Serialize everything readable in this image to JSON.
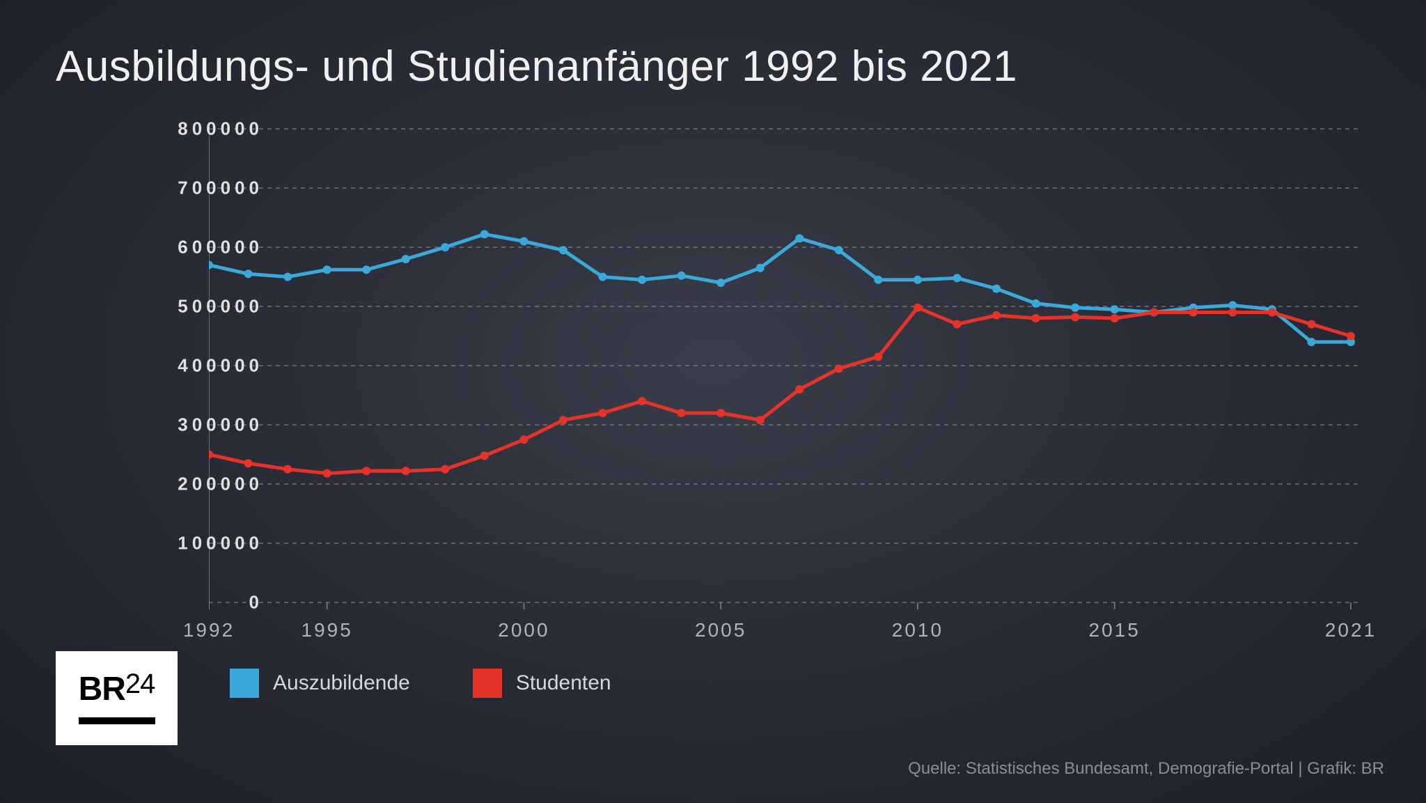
{
  "title": "Ausbildungs- und Studienanfänger 1992 bis 2021",
  "chart": {
    "type": "line",
    "background_gradient": [
      "#3a3e4a",
      "#2a2d37",
      "#1e2029"
    ],
    "grid_color": "#9a9da6",
    "grid_dash": "6 6",
    "axis_color": "#9a9da6",
    "ylim": [
      0,
      800000
    ],
    "ytick_step": 100000,
    "y_ticks": [
      "0",
      "100000",
      "200000",
      "300000",
      "400000",
      "500000",
      "600000",
      "700000",
      "800000"
    ],
    "xlim": [
      1992,
      2021
    ],
    "x_ticks": [
      1992,
      1995,
      2000,
      2005,
      2010,
      2015,
      2021
    ],
    "x_tick_labels": [
      "1992",
      "1995",
      "2000",
      "2005",
      "2010",
      "2015",
      "2021"
    ],
    "line_width": 5,
    "marker_size": 6,
    "tick_label_fontsize": 26,
    "series": [
      {
        "name": "Auszubildende",
        "color": "#3aa8d8",
        "years": [
          1992,
          1993,
          1994,
          1995,
          1996,
          1997,
          1998,
          1999,
          2000,
          2001,
          2002,
          2003,
          2004,
          2005,
          2006,
          2007,
          2008,
          2009,
          2010,
          2011,
          2012,
          2013,
          2014,
          2015,
          2016,
          2017,
          2018,
          2019,
          2020,
          2021
        ],
        "values": [
          570000,
          555000,
          550000,
          562000,
          562000,
          580000,
          600000,
          622000,
          610000,
          595000,
          550000,
          545000,
          552000,
          540000,
          565000,
          615000,
          595000,
          545000,
          545000,
          548000,
          530000,
          505000,
          498000,
          495000,
          490000,
          498000,
          502000,
          495000,
          440000,
          440000
        ]
      },
      {
        "name": "Studenten",
        "color": "#e6332a",
        "years": [
          1992,
          1993,
          1994,
          1995,
          1996,
          1997,
          1998,
          1999,
          2000,
          2001,
          2002,
          2003,
          2004,
          2005,
          2006,
          2007,
          2008,
          2009,
          2010,
          2011,
          2012,
          2013,
          2014,
          2015,
          2016,
          2017,
          2018,
          2019,
          2020,
          2021
        ],
        "values": [
          250000,
          235000,
          225000,
          218000,
          222000,
          222000,
          225000,
          248000,
          275000,
          308000,
          320000,
          340000,
          320000,
          320000,
          308000,
          360000,
          395000,
          415000,
          498000,
          470000,
          485000,
          480000,
          482000,
          480000,
          490000,
          490000,
          490000,
          490000,
          470000,
          450000
        ]
      }
    ]
  },
  "legend": {
    "items": [
      {
        "label": "Auszubildende",
        "color": "#3aa8d8"
      },
      {
        "label": "Studenten",
        "color": "#e6332a"
      }
    ],
    "swatch_size": 42,
    "fontsize": 30
  },
  "logo": {
    "text_main": "BR",
    "text_sup": "24"
  },
  "source": "Quelle: Statistisches Bundesamt, Demografie-Portal | Grafik: BR"
}
